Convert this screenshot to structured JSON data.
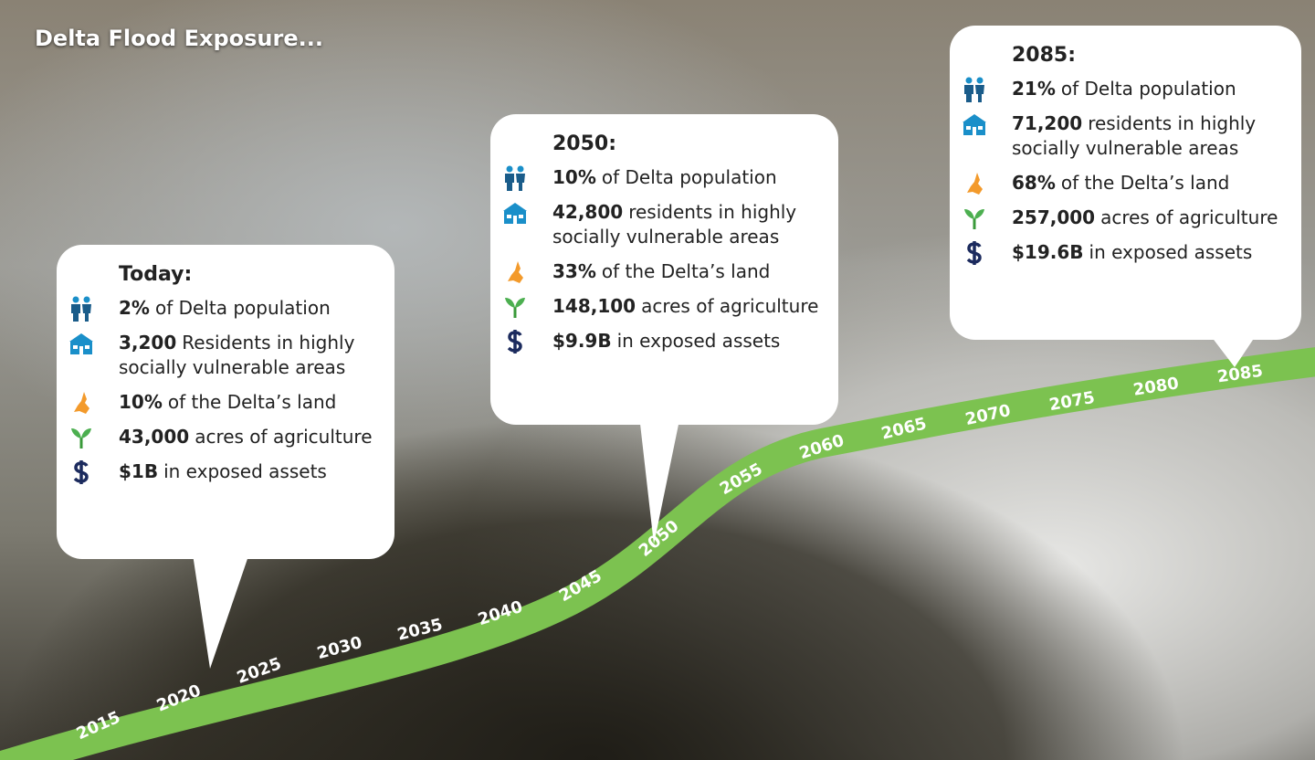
{
  "title": "Delta Flood Exposure...",
  "timeline": {
    "years": [
      "2015",
      "2020",
      "2025",
      "2030",
      "2035",
      "2040",
      "2045",
      "2050",
      "2055",
      "2060",
      "2065",
      "2070",
      "2075",
      "2080",
      "2085"
    ]
  },
  "callouts": [
    {
      "heading": "Today:",
      "items": [
        {
          "bold": "2%",
          "text": "of Delta population"
        },
        {
          "bold": "3,200",
          "text": "Residents in highly socially vulnerable areas"
        },
        {
          "bold": "10%",
          "text": "of the Delta’s land"
        },
        {
          "bold": "43,000",
          "text": "acres of agriculture"
        },
        {
          "bold": "$1B",
          "text": "in exposed assets"
        }
      ]
    },
    {
      "heading": "2050:",
      "items": [
        {
          "bold": "10%",
          "text": "of Delta population"
        },
        {
          "bold": "42,800",
          "text": "residents in highly socially vulnerable areas"
        },
        {
          "bold": "33%",
          "text": "of the Delta’s land"
        },
        {
          "bold": "148,100",
          "text": "acres of agriculture"
        },
        {
          "bold": "$9.9B",
          "text": "in exposed assets"
        }
      ]
    },
    {
      "heading": "2085:",
      "items": [
        {
          "bold": "21%",
          "text": "of Delta population"
        },
        {
          "bold": "71,200",
          "text": "residents in highly socially vulnerable areas"
        },
        {
          "bold": "68%",
          "text": "of the Delta’s land"
        },
        {
          "bold": "257,000",
          "text": "acres of agriculture"
        },
        {
          "bold": "$19.6B",
          "text": "in exposed assets"
        }
      ]
    }
  ]
}
